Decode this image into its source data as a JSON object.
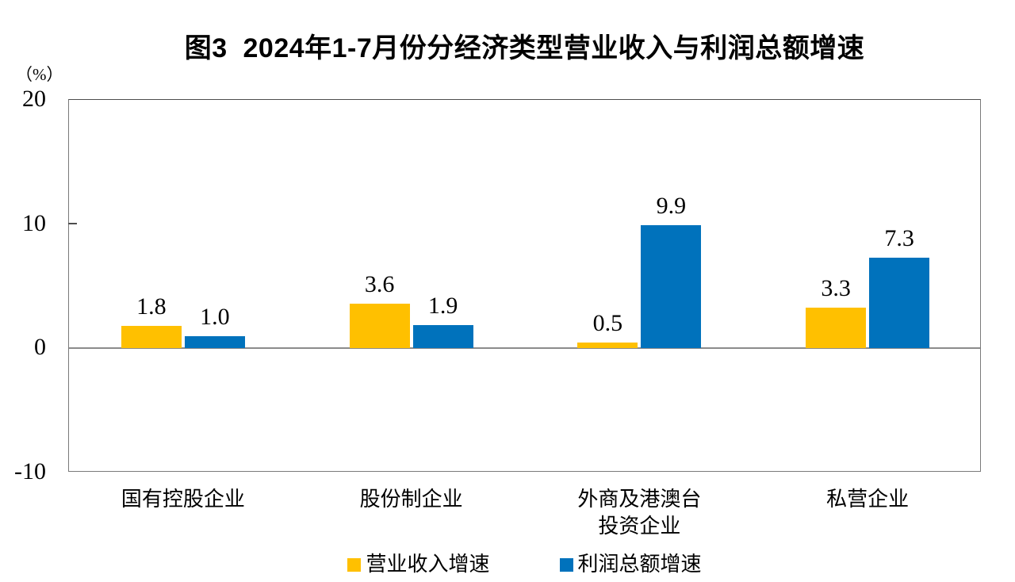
{
  "title": "图3  2024年1-7月份分经济类型营业收入与利润总额增速",
  "chart_data": {
    "type": "bar",
    "categories": [
      "国有控股企业",
      "股份制企业",
      "外商及港澳台\n投资企业",
      "私营企业"
    ],
    "series": [
      {
        "key": "revenue-growth",
        "name": "营业收入增速",
        "color": "#FFC000",
        "values": [
          1.8,
          3.6,
          0.5,
          3.3
        ]
      },
      {
        "key": "profit-growth",
        "name": "利润总额增速",
        "color": "#0072BC",
        "values": [
          1.0,
          1.9,
          9.9,
          7.3
        ]
      }
    ],
    "ylabel": "（%）",
    "ylim": [
      -10,
      20
    ],
    "yticks": [
      20,
      10,
      0,
      -10
    ],
    "grid": false,
    "value_labels": true,
    "value_decimals": 1,
    "legend_position": "bottom",
    "axis_color": "#7a7a7a",
    "zero_line_color": "#8c8c8c"
  }
}
